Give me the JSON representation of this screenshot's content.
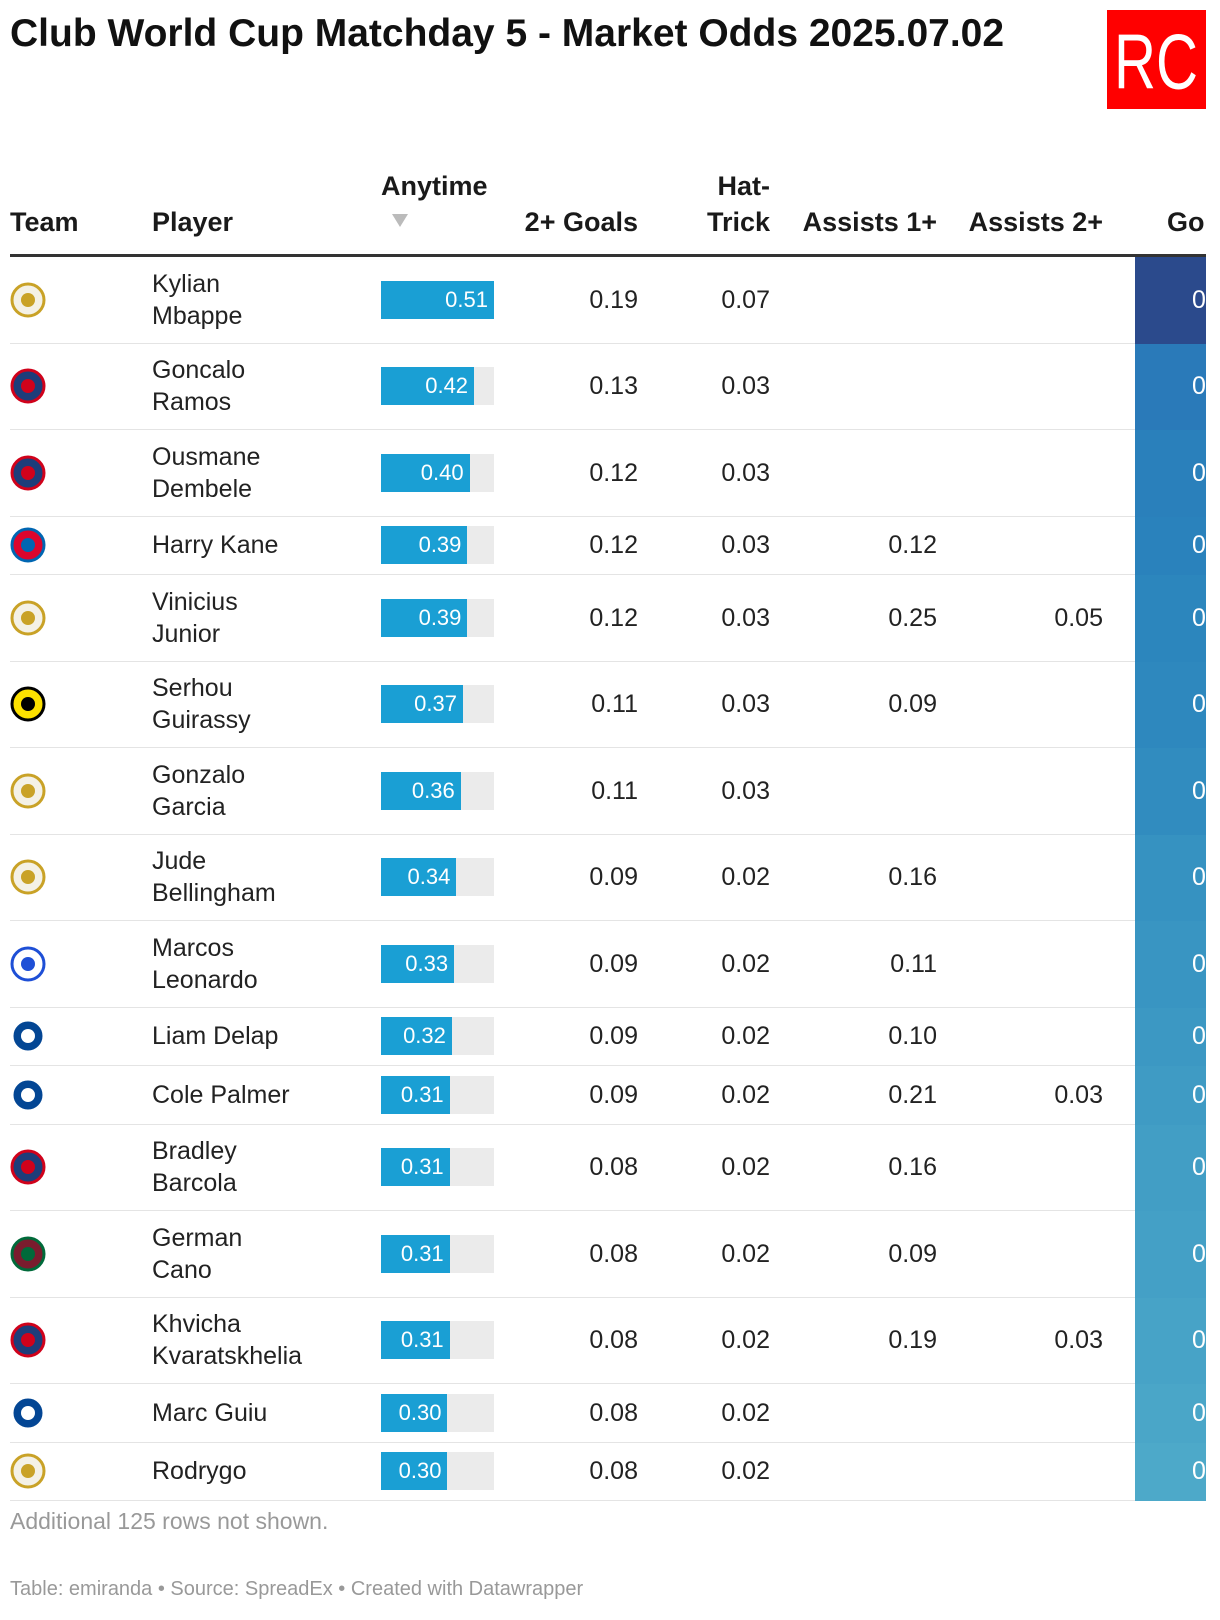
{
  "header": {
    "title": "Club World Cup Matchday 5 - Market Odds 2025.07.02",
    "logo": "RC"
  },
  "table": {
    "columns": [
      "Team",
      "Player",
      "Anytime",
      "2+ Goals",
      "Hat-Trick",
      "Assists 1+",
      "Assists 2+",
      "Go"
    ],
    "rows": [
      {
        "player": "Kylian Mbappe",
        "anytime": 0.51,
        "anytime_label": "0.51",
        "goals2": "0.19",
        "hattrick": "0.07",
        "assists1": null,
        "assists2": null,
        "go": "0",
        "go_color": "#2b4a8c"
      },
      {
        "player": "Goncalo Ramos",
        "anytime": 0.42,
        "anytime_label": "0.42",
        "goals2": "0.13",
        "hattrick": "0.03",
        "assists1": null,
        "assists2": null,
        "go": "0",
        "go_color": "#2a7ab9"
      },
      {
        "player": "Ousmane Dembele",
        "anytime": 0.4,
        "anytime_label": "0.40",
        "goals2": "0.12",
        "hattrick": "0.03",
        "assists1": null,
        "assists2": null,
        "go": "0",
        "go_color": "#2a80bb"
      },
      {
        "player": "Harry Kane",
        "anytime": 0.39,
        "anytime_label": "0.39",
        "goals2": "0.12",
        "hattrick": "0.03",
        "assists1": "0.12",
        "assists2": null,
        "go": "0",
        "go_color": "#2a82bc"
      },
      {
        "player": "Vinicius Junior",
        "anytime": 0.39,
        "anytime_label": "0.39",
        "goals2": "0.12",
        "hattrick": "0.03",
        "assists1": "0.25",
        "assists2": "0.05",
        "go": "0",
        "go_color": "#2c86bd"
      },
      {
        "player": "Serhou Guirassy",
        "anytime": 0.37,
        "anytime_label": "0.37",
        "goals2": "0.11",
        "hattrick": "0.03",
        "assists1": "0.09",
        "assists2": null,
        "go": "0",
        "go_color": "#2e88be"
      },
      {
        "player": "Gonzalo Garcia",
        "anytime": 0.36,
        "anytime_label": "0.36",
        "goals2": "0.11",
        "hattrick": "0.03",
        "assists1": null,
        "assists2": null,
        "go": "0",
        "go_color": "#318cbf"
      },
      {
        "player": "Jude Bellingham",
        "anytime": 0.34,
        "anytime_label": "0.34",
        "goals2": "0.09",
        "hattrick": "0.02",
        "assists1": "0.16",
        "assists2": null,
        "go": "0",
        "go_color": "#3692c1"
      },
      {
        "player": "Marcos Leonardo",
        "anytime": 0.33,
        "anytime_label": "0.33",
        "goals2": "0.09",
        "hattrick": "0.02",
        "assists1": "0.11",
        "assists2": null,
        "go": "0",
        "go_color": "#3995c2"
      },
      {
        "player": "Liam Delap",
        "anytime": 0.32,
        "anytime_label": "0.32",
        "goals2": "0.09",
        "hattrick": "0.02",
        "assists1": "0.10",
        "assists2": null,
        "go": "0",
        "go_color": "#3c98c3"
      },
      {
        "player": "Cole Palmer",
        "anytime": 0.31,
        "anytime_label": "0.31",
        "goals2": "0.09",
        "hattrick": "0.02",
        "assists1": "0.21",
        "assists2": "0.03",
        "go": "0",
        "go_color": "#3f9bc4"
      },
      {
        "player": "Bradley Barcola",
        "anytime": 0.31,
        "anytime_label": "0.31",
        "goals2": "0.08",
        "hattrick": "0.02",
        "assists1": "0.16",
        "assists2": null,
        "go": "0",
        "go_color": "#429ec5"
      },
      {
        "player": "German Cano",
        "anytime": 0.31,
        "anytime_label": "0.31",
        "goals2": "0.08",
        "hattrick": "0.02",
        "assists1": "0.09",
        "assists2": null,
        "go": "0",
        "go_color": "#44a0c6"
      },
      {
        "player": "Khvicha Kvaratskhelia",
        "anytime": 0.31,
        "anytime_label": "0.31",
        "goals2": "0.08",
        "hattrick": "0.02",
        "assists1": "0.19",
        "assists2": "0.03",
        "go": "0",
        "go_color": "#47a3c7"
      },
      {
        "player": "Marc Guiu",
        "anytime": 0.3,
        "anytime_label": "0.30",
        "goals2": "0.08",
        "hattrick": "0.02",
        "assists1": null,
        "assists2": null,
        "go": "0",
        "go_color": "#4aa6c8"
      },
      {
        "player": "Rodrygo",
        "anytime": 0.3,
        "anytime_label": "0.30",
        "goals2": "0.08",
        "hattrick": "0.02",
        "assists1": null,
        "assists2": null,
        "go": "0",
        "go_color": "#4da9c9"
      }
    ]
  },
  "notes": {
    "hidden_rows": "Additional 125 rows not shown.",
    "source": "Table: emiranda • Source: SpreadEx • Created with Datawrapper"
  }
}
